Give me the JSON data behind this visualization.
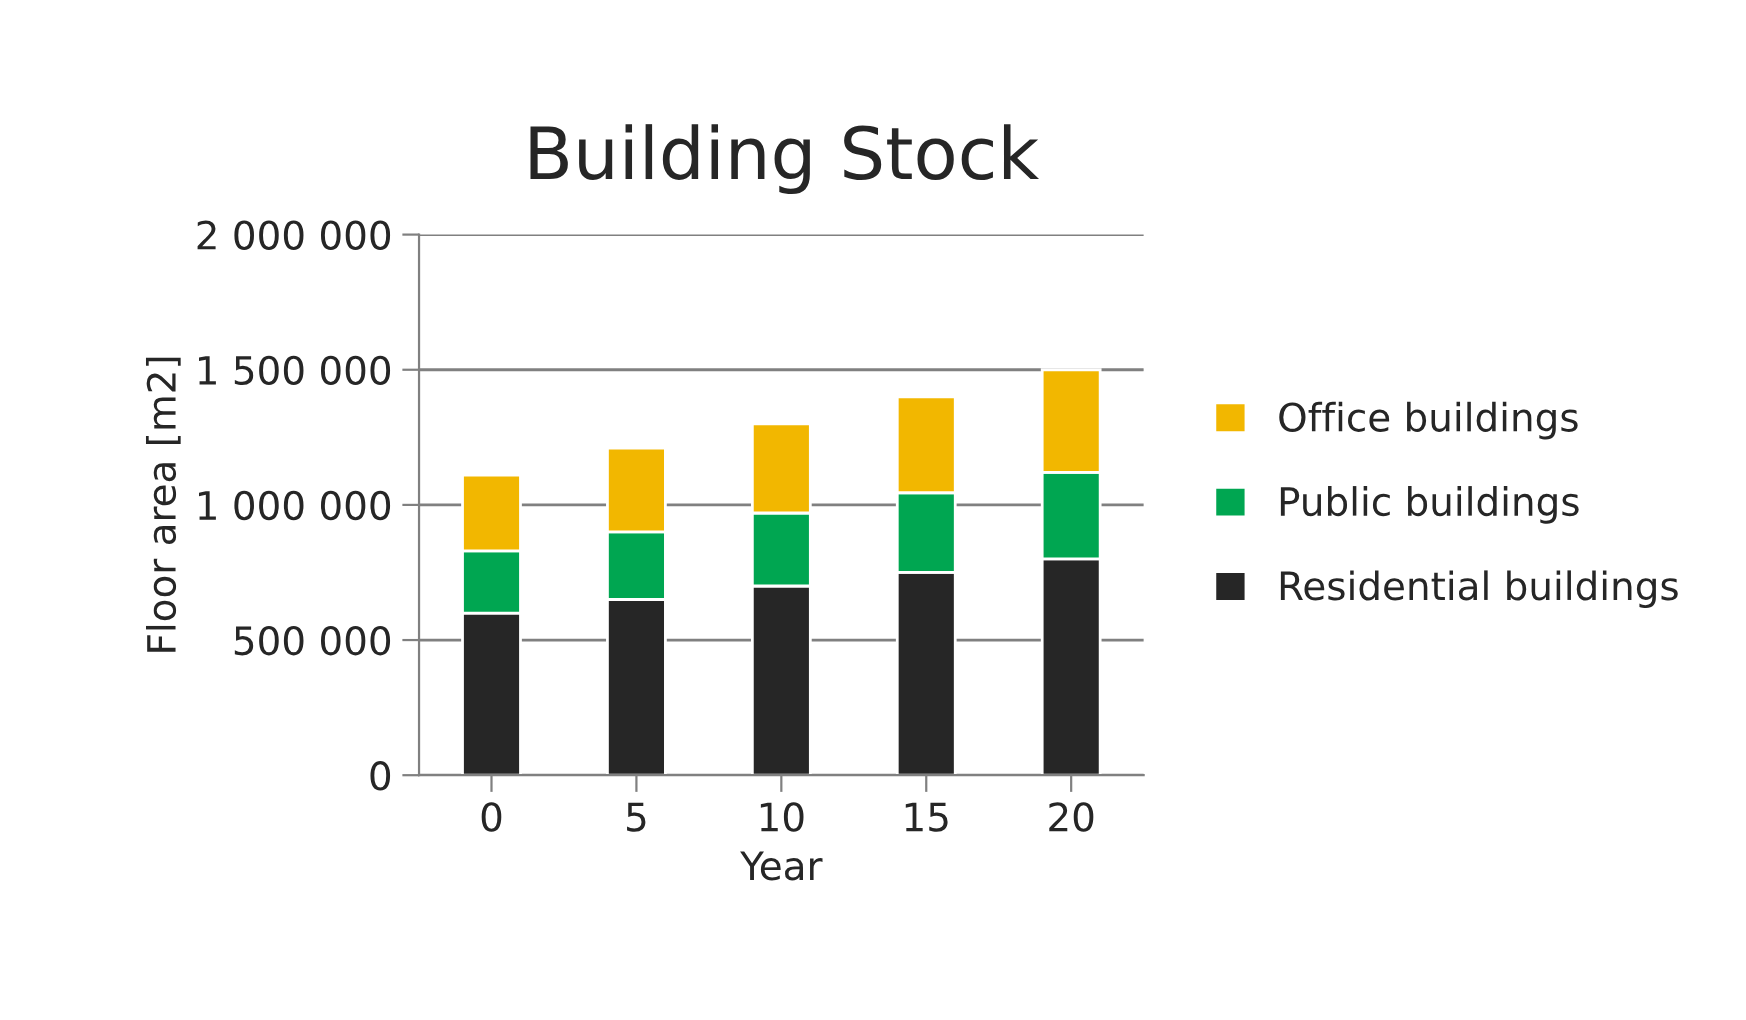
{
  "chart_data": {
    "type": "bar",
    "title": "Building Stock",
    "xlabel": "Year",
    "ylabel": "Floor area [m2]",
    "categories": [
      "0",
      "5",
      "10",
      "15",
      "20"
    ],
    "stacked": true,
    "series": [
      {
        "name": "Residential buildings",
        "color": "#262626",
        "values": [
          600000,
          650000,
          700000,
          750000,
          800000
        ]
      },
      {
        "name": "Public buildings",
        "color": "#00a651",
        "values": [
          230000,
          250000,
          270000,
          295000,
          320000
        ]
      },
      {
        "name": "Office buildings",
        "color": "#f2b700",
        "values": [
          280000,
          310000,
          330000,
          355000,
          380000
        ]
      }
    ],
    "ylim": [
      0,
      2000000
    ],
    "yticks": [
      0,
      {
        "value": 500000,
        "label": "500 000"
      },
      {
        "value": 1000000,
        "label": "1 000 000"
      },
      {
        "value": 1500000,
        "label": "1 500 000"
      },
      {
        "value": 2000000,
        "label": "2 000 000"
      }
    ],
    "grid": "y",
    "legend": "right"
  }
}
